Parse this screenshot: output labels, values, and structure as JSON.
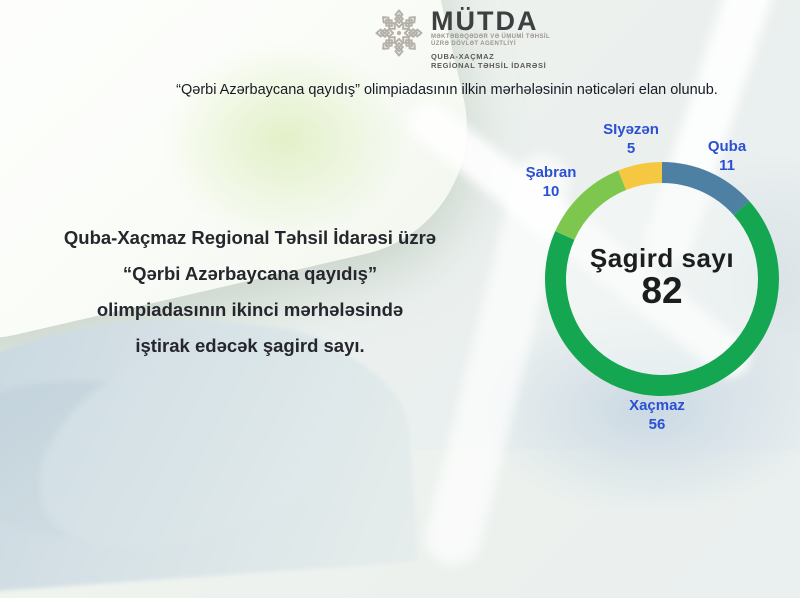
{
  "logo": {
    "acronym": "MÜTDA",
    "agency_line1": "MƏKTƏBƏQƏDƏR VƏ ÜMUMİ TƏHSİL",
    "agency_line2": "ÜZRƏ DÖVLƏT AGENTLİYİ",
    "org_line1": "QUBA-XAÇMAZ",
    "org_line2": "REGİONAL TƏHSİL İDARƏSİ",
    "emblem_icon": "snowflake-medallion-icon",
    "emblem_color": "#b5b1a9"
  },
  "subtitle": "“Qərbi Azərbaycana qayıdış” olimpiadasının ilkin mərhələsinin nəticələri elan olunub.",
  "statement": {
    "line1": "Quba-Xaçmaz Regional Təhsil İdarəsi üzrə",
    "line2": "“Qərbi Azərbaycana qayıdış”",
    "line3": "olimpiadasının ikinci mərhələsində",
    "line4": "iştirak edəcək şagird sayı."
  },
  "chart_data": {
    "type": "pie",
    "subtype": "donut",
    "title": "Şagird sayı",
    "center_label": "Şagird sayı",
    "center_value": "82",
    "total": 82,
    "start_angle_deg": 0,
    "direction": "clockwise",
    "legend_position": "around",
    "label_color": "#2b50d4",
    "segments": [
      {
        "label": "Quba",
        "value": 11,
        "color": "#4e80a4"
      },
      {
        "label": "Xaçmaz",
        "value": 56,
        "color": "#15a651"
      },
      {
        "label": "Şabran",
        "value": 10,
        "color": "#7dc74e"
      },
      {
        "label": "SIyəzən",
        "value": 5,
        "color": "#f6c740"
      }
    ]
  }
}
